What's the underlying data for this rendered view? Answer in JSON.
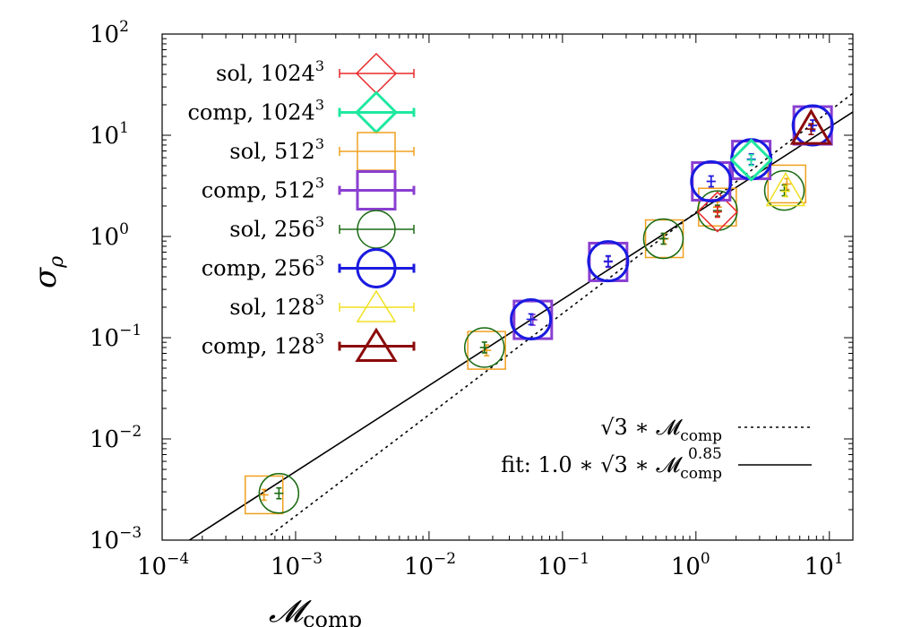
{
  "chart_data": {
    "type": "scatter",
    "x_scale": "log",
    "y_scale": "log",
    "xlim": [
      0.0001,
      15
    ],
    "ylim": [
      0.001,
      100
    ],
    "xlabel": "𝓜",
    "xlabel_sub": "comp",
    "ylabel": "σ",
    "ylabel_sub": "ρ",
    "x_ticks": [
      {
        "base": "10",
        "exp": "−4"
      },
      {
        "base": "10",
        "exp": "−3"
      },
      {
        "base": "10",
        "exp": "−2"
      },
      {
        "base": "10",
        "exp": "−1"
      },
      {
        "base": "10",
        "exp": "0"
      },
      {
        "base": "10",
        "exp": "1"
      }
    ],
    "y_ticks": [
      {
        "base": "10",
        "exp": "−3"
      },
      {
        "base": "10",
        "exp": "−2"
      },
      {
        "base": "10",
        "exp": "−1"
      },
      {
        "base": "10",
        "exp": "0"
      },
      {
        "base": "10",
        "exp": "1"
      },
      {
        "base": "10",
        "exp": "2"
      }
    ],
    "x_tick_values": [
      0.0001,
      0.001,
      0.01,
      0.1,
      1,
      10
    ],
    "y_tick_values": [
      0.001,
      0.01,
      0.1,
      1,
      10,
      100
    ],
    "legend_position": "top-left",
    "series": [
      {
        "name": "sol, 1024",
        "name_sup": "3",
        "marker": "diamond",
        "color": "#e8292b",
        "stroke_width": 1.5,
        "points": [
          {
            "x": 1.45,
            "y": 1.75
          }
        ]
      },
      {
        "name": "comp, 1024",
        "name_sup": "3",
        "marker": "diamond",
        "color": "#1fe8a0",
        "stroke_width": 3,
        "points": [
          {
            "x": 2.6,
            "y": 5.7
          }
        ]
      },
      {
        "name": "sol, 512",
        "name_sup": "3",
        "marker": "square",
        "color": "#f0a020",
        "stroke_width": 1.5,
        "points": [
          {
            "x": 0.00058,
            "y": 0.0028
          },
          {
            "x": 0.027,
            "y": 0.075
          },
          {
            "x": 0.58,
            "y": 0.95
          },
          {
            "x": 1.45,
            "y": 1.95
          },
          {
            "x": 4.8,
            "y": 3.3
          }
        ]
      },
      {
        "name": "comp, 512",
        "name_sup": "3",
        "marker": "square",
        "color": "#8a3fd0",
        "stroke_width": 3,
        "points": [
          {
            "x": 0.06,
            "y": 0.15
          },
          {
            "x": 0.22,
            "y": 0.56
          },
          {
            "x": 1.3,
            "y": 3.5
          },
          {
            "x": 2.6,
            "y": 5.7
          },
          {
            "x": 7.5,
            "y": 12.5
          }
        ]
      },
      {
        "name": "sol, 256",
        "name_sup": "3",
        "marker": "circle",
        "color": "#1a6b12",
        "stroke_width": 1.5,
        "points": [
          {
            "x": 0.00075,
            "y": 0.0029
          },
          {
            "x": 0.026,
            "y": 0.08
          },
          {
            "x": 0.57,
            "y": 0.95
          },
          {
            "x": 1.45,
            "y": 1.8
          },
          {
            "x": 4.6,
            "y": 2.85
          }
        ]
      },
      {
        "name": "comp, 256",
        "name_sup": "3",
        "marker": "circle",
        "color": "#1a1ae0",
        "stroke_width": 3,
        "points": [
          {
            "x": 0.058,
            "y": 0.152
          },
          {
            "x": 0.22,
            "y": 0.57
          },
          {
            "x": 1.3,
            "y": 3.5
          },
          {
            "x": 2.6,
            "y": 5.8
          },
          {
            "x": 7.5,
            "y": 12.5
          }
        ]
      },
      {
        "name": "sol, 128",
        "name_sup": "3",
        "marker": "triangle",
        "color": "#f0e020",
        "stroke_width": 1.5,
        "points": [
          {
            "x": 4.7,
            "y": 2.8
          }
        ]
      },
      {
        "name": "comp, 128",
        "name_sup": "3",
        "marker": "triangle",
        "color": "#8b0a0a",
        "stroke_width": 3,
        "points": [
          {
            "x": 7.3,
            "y": 11.5
          }
        ]
      }
    ],
    "lines": [
      {
        "label_main": "√3 ∗ 𝓜",
        "label_sub": "comp",
        "label_sup": "",
        "dash": "3,4",
        "points": [
          {
            "x": 0.00065,
            "y": 0.001126
          },
          {
            "x": 15,
            "y": 25.98
          }
        ]
      },
      {
        "label_main": "fit: 1.0 ∗ √3 ∗ 𝓜",
        "label_sub": "comp",
        "label_sup": "0.85",
        "dash": "",
        "points": [
          {
            "x": 0.00016,
            "y": 0.001
          },
          {
            "x": 15,
            "y": 16.98
          }
        ]
      }
    ]
  }
}
